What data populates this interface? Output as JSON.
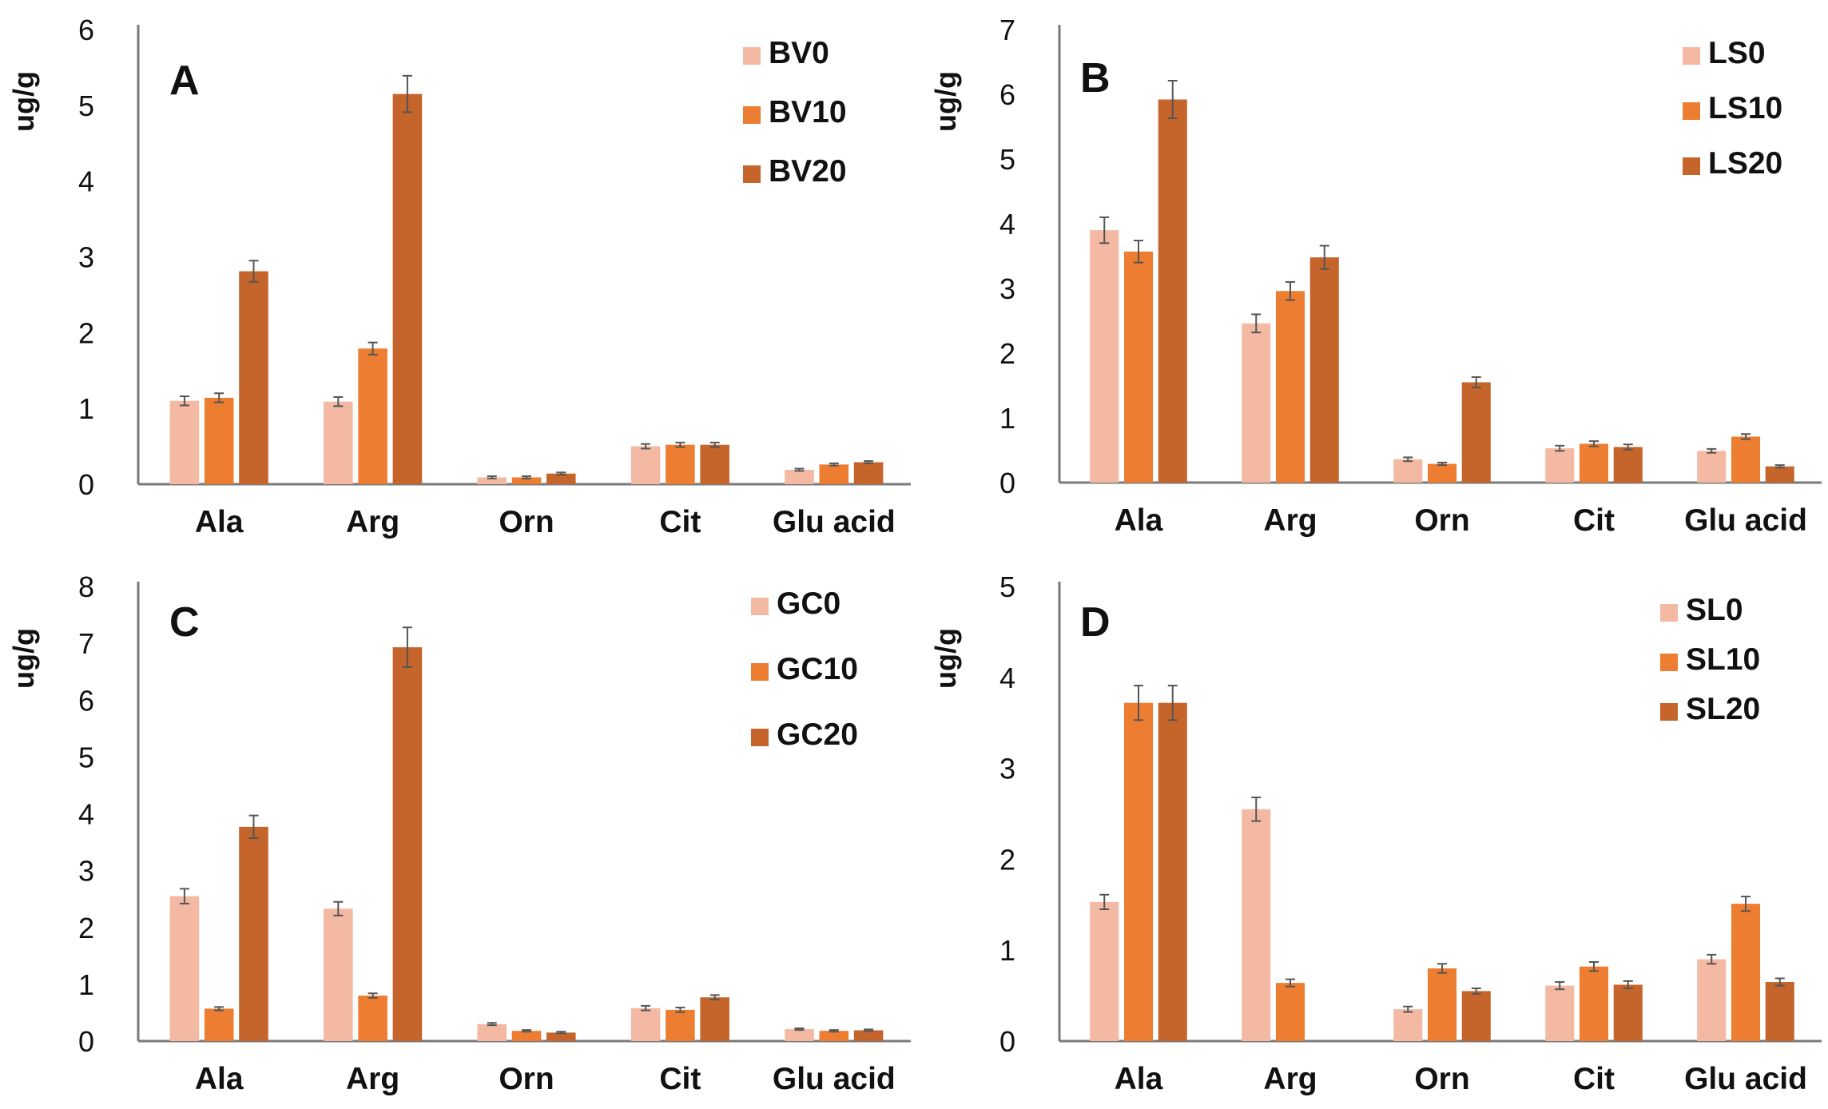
{
  "chart_data": [
    {
      "type": "bar",
      "panel": "A",
      "ylabel": "ug/g",
      "ylim": [
        0,
        6
      ],
      "yticks": [
        0,
        1,
        2,
        3,
        4,
        5,
        6
      ],
      "categories": [
        "Ala",
        "Arg",
        "Orn",
        "Cit",
        "Glu acid"
      ],
      "legend_position": "top-right",
      "series": [
        {
          "name": "BV0",
          "color": "#f4b9a3",
          "values": [
            1.1,
            1.09,
            0.09,
            0.5,
            0.19
          ],
          "errors": [
            0.06,
            0.06,
            0.015,
            0.03,
            0.015
          ]
        },
        {
          "name": "BV10",
          "color": "#ed7d31",
          "values": [
            1.14,
            1.79,
            0.09,
            0.52,
            0.26
          ],
          "errors": [
            0.06,
            0.08,
            0.015,
            0.03,
            0.015
          ]
        },
        {
          "name": "BV20",
          "color": "#c5652c",
          "values": [
            2.81,
            5.15,
            0.14,
            0.52,
            0.29
          ],
          "errors": [
            0.14,
            0.24,
            0.015,
            0.03,
            0.015
          ]
        }
      ]
    },
    {
      "type": "bar",
      "panel": "B",
      "ylabel": "ug/g",
      "ylim": [
        0,
        7
      ],
      "yticks": [
        0,
        1,
        2,
        3,
        4,
        5,
        6,
        7
      ],
      "categories": [
        "Ala",
        "Arg",
        "Orn",
        "Cit",
        "Glu acid"
      ],
      "legend_position": "top-right",
      "series": [
        {
          "name": "LS0",
          "color": "#f4b9a3",
          "values": [
            3.9,
            2.46,
            0.36,
            0.53,
            0.49
          ],
          "errors": [
            0.2,
            0.14,
            0.03,
            0.04,
            0.03
          ]
        },
        {
          "name": "LS10",
          "color": "#ed7d31",
          "values": [
            3.57,
            2.96,
            0.29,
            0.6,
            0.71
          ],
          "errors": [
            0.17,
            0.14,
            0.02,
            0.04,
            0.04
          ]
        },
        {
          "name": "LS20",
          "color": "#c5652c",
          "values": [
            5.92,
            3.48,
            1.55,
            0.55,
            0.25
          ],
          "errors": [
            0.29,
            0.18,
            0.08,
            0.04,
            0.02
          ]
        }
      ]
    },
    {
      "type": "bar",
      "panel": "C",
      "ylabel": "ug/g",
      "ylim": [
        0,
        8
      ],
      "yticks": [
        0,
        1,
        2,
        3,
        4,
        5,
        6,
        7,
        8
      ],
      "categories": [
        "Ala",
        "Arg",
        "Orn",
        "Cit",
        "Glu acid"
      ],
      "legend_position": "top-right",
      "series": [
        {
          "name": "GC0",
          "color": "#f4b9a3",
          "values": [
            2.55,
            2.33,
            0.3,
            0.58,
            0.21
          ],
          "errors": [
            0.13,
            0.12,
            0.02,
            0.04,
            0.015
          ]
        },
        {
          "name": "GC10",
          "color": "#ed7d31",
          "values": [
            0.57,
            0.8,
            0.18,
            0.55,
            0.18
          ],
          "errors": [
            0.03,
            0.04,
            0.015,
            0.04,
            0.015
          ]
        },
        {
          "name": "GC20",
          "color": "#c5652c",
          "values": [
            3.77,
            6.93,
            0.15,
            0.77,
            0.19
          ],
          "errors": [
            0.2,
            0.35,
            0.015,
            0.04,
            0.015
          ]
        }
      ]
    },
    {
      "type": "bar",
      "panel": "D",
      "ylabel": "ug/g",
      "ylim": [
        0,
        5
      ],
      "yticks": [
        0,
        1,
        2,
        3,
        4,
        5
      ],
      "categories": [
        "Ala",
        "Arg",
        "Orn",
        "Cit",
        "Glu acid"
      ],
      "legend_position": "top-right",
      "series": [
        {
          "name": "SL0",
          "color": "#f4b9a3",
          "values": [
            1.53,
            2.55,
            0.35,
            0.61,
            0.9
          ],
          "errors": [
            0.08,
            0.13,
            0.03,
            0.04,
            0.05
          ]
        },
        {
          "name": "SL10",
          "color": "#ed7d31",
          "values": [
            3.72,
            0.64,
            0.8,
            0.82,
            1.51
          ],
          "errors": [
            0.19,
            0.04,
            0.05,
            0.05,
            0.08
          ]
        },
        {
          "name": "SL20",
          "color": "#c5652c",
          "values": [
            3.72,
            null,
            0.55,
            0.62,
            0.65
          ],
          "errors": [
            0.19,
            null,
            0.03,
            0.04,
            0.04
          ]
        }
      ]
    }
  ]
}
